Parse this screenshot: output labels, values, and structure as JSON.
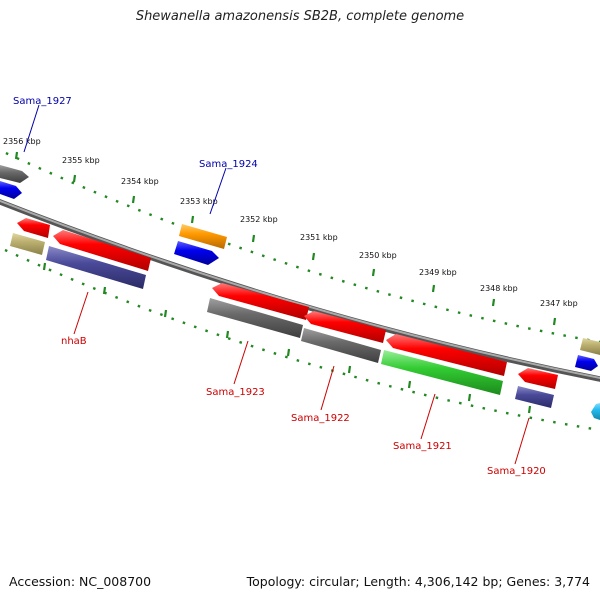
{
  "title": "Shewanella amazonensis SB2B, complete genome",
  "footer": {
    "accession": "Accession: NC_008700",
    "summary": "Topology: circular; Length: 4,306,142 bp; Genes: 3,774"
  },
  "ticks": [
    "2356 kbp",
    "2355 kbp",
    "2354 kbp",
    "2353 kbp",
    "2352 kbp",
    "2351 kbp",
    "2350 kbp",
    "2349 kbp",
    "2348 kbp",
    "2347 kbp"
  ],
  "labels": [
    {
      "name": "Sama_1927",
      "color": "#0000aa"
    },
    {
      "name": "Sama_1924",
      "color": "#0000aa"
    },
    {
      "name": "nhaB",
      "color": "#cc0000"
    },
    {
      "name": "Sama_1923",
      "color": "#cc0000"
    },
    {
      "name": "Sama_1922",
      "color": "#cc0000"
    },
    {
      "name": "Sama_1921",
      "color": "#cc0000"
    },
    {
      "name": "Sama_1920",
      "color": "#cc0000"
    }
  ],
  "colors": {
    "red": "#ff0000",
    "gray": "#6e6e6e",
    "navy": "#4a4a9a",
    "blue": "#0000ee",
    "orange": "#ff9900",
    "green": "#33cc33",
    "khaki": "#bcb070",
    "cyan": "#22bbee",
    "backbone": "#8a8a8a",
    "tick": "#228822"
  }
}
